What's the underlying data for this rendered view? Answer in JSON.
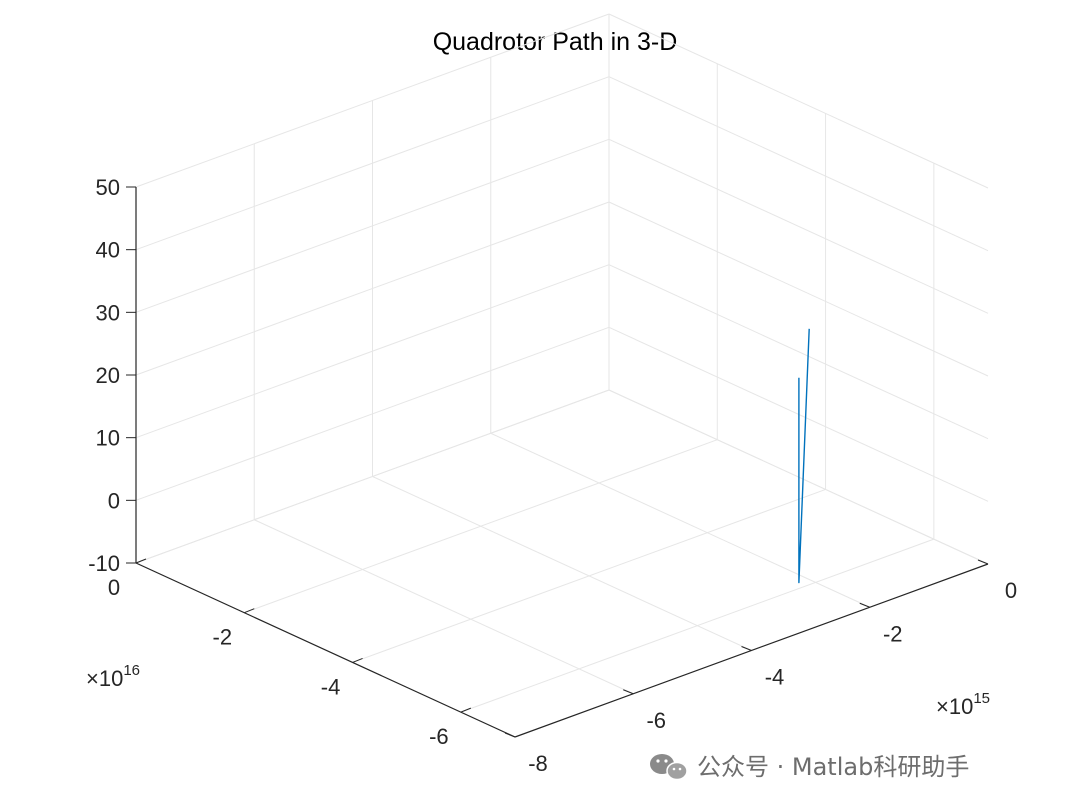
{
  "chart_data": {
    "type": "line3d",
    "title": "Quadrotor Path in 3-D",
    "x_axis": {
      "ticks": [
        "0",
        "-2",
        "-4",
        "-6"
      ],
      "tick_values": [
        0,
        -2,
        -4,
        -6
      ],
      "range": [
        -7,
        0
      ],
      "multiplier": "×10",
      "exponent": "16"
    },
    "y_axis": {
      "ticks": [
        "0",
        "-2",
        "-4",
        "-6",
        "-8"
      ],
      "tick_values": [
        0,
        -2,
        -4,
        -6,
        -8
      ],
      "range": [
        -8,
        0
      ],
      "multiplier": "×10",
      "exponent": "15"
    },
    "z_axis": {
      "ticks": [
        "50",
        "40",
        "30",
        "20",
        "10",
        "0",
        "-10"
      ],
      "tick_values": [
        50,
        40,
        30,
        20,
        10,
        0,
        -10
      ],
      "range": [
        -10,
        50
      ]
    },
    "grid": true,
    "series": [
      {
        "color": "#0072bd",
        "points": [
          {
            "x": -5.56,
            "y": -1.88,
            "z": 20.5
          },
          {
            "x": -5.56,
            "y": -1.88,
            "z": -12.2
          },
          {
            "x": -4.55,
            "y": -0.78,
            "z": 20.5
          }
        ]
      }
    ]
  },
  "watermark": {
    "text": "公众号 · Matlab科研助手",
    "icon": "wechat-icon"
  }
}
